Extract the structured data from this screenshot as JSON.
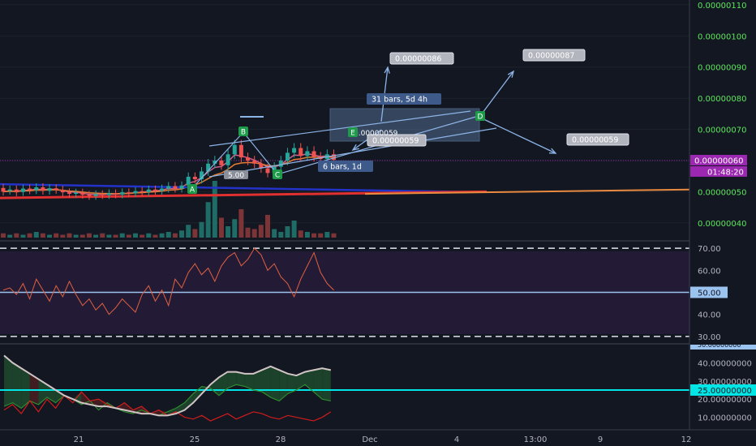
{
  "colors": {
    "background": "#131722",
    "axis_text": "#b2b5be",
    "up_candle": "#26a69a",
    "down_candle": "#ef5350",
    "label_green": "#1e9b4a",
    "label_blue": "#3d5a8a",
    "price_label": "#9c27b0",
    "rsi_line": "#e06040",
    "rsi_band": "#2a1d3d",
    "dmi_adx": "#d1c4c4",
    "dmi_plus": "#2e8b2e",
    "dmi_minus": "#d01c1c",
    "dmi_level": "#00e5e5"
  },
  "chart_data": [
    {
      "type": "candlestick",
      "x_ticks": [
        "21",
        "25",
        "28",
        "Dec",
        "4",
        "13:00",
        "9",
        "12"
      ],
      "y_ticks": [
        "0.00000110",
        "0.00000100",
        "0.00000090",
        "0.00000080",
        "0.00000070",
        "0.00000060",
        "0.00000050",
        "0.00000040"
      ],
      "ylim": [
        3.5e-07,
        1.105e-06
      ],
      "last_price": "0.00000060",
      "countdown": "01:48:20",
      "candles": [
        [
          5.12e-07,
          5e-07
        ],
        [
          5.03e-07,
          5.07e-07
        ],
        [
          5.07e-07,
          4.98e-07
        ],
        [
          4.99e-07,
          5.1e-07
        ],
        [
          5.1e-07,
          5.05e-07
        ],
        [
          5.05e-07,
          5.14e-07
        ],
        [
          5.14e-07,
          5.03e-07
        ],
        [
          5.03e-07,
          5.11e-07
        ],
        [
          5.11e-07,
          5.06e-07
        ],
        [
          5.06e-07,
          4.98e-07
        ],
        [
          4.98e-07,
          4.93e-07
        ],
        [
          4.93e-07,
          4.97e-07
        ],
        [
          4.97e-07,
          4.9e-07
        ],
        [
          4.9e-07,
          4.86e-07
        ],
        [
          4.86e-07,
          4.92e-07
        ],
        [
          4.92e-07,
          4.89e-07
        ],
        [
          4.89e-07,
          4.95e-07
        ],
        [
          4.95e-07,
          4.91e-07
        ],
        [
          4.91e-07,
          4.98e-07
        ],
        [
          4.98e-07,
          4.95e-07
        ],
        [
          4.95e-07,
          5.02e-07
        ],
        [
          5.02e-07,
          4.99e-07
        ],
        [
          4.99e-07,
          5.07e-07
        ],
        [
          5.07e-07,
          5.03e-07
        ],
        [
          5.03e-07,
          5.1e-07
        ],
        [
          5.1e-07,
          5.18e-07
        ],
        [
          5.18e-07,
          5.1e-07
        ],
        [
          5.1e-07,
          5.2e-07
        ],
        [
          5.2e-07,
          5.48e-07
        ],
        [
          5.48e-07,
          5.4e-07
        ],
        [
          5.4e-07,
          5.65e-07
        ],
        [
          5.65e-07,
          5.9e-07
        ],
        [
          5.9e-07,
          6e-07
        ],
        [
          6e-07,
          5.85e-07
        ],
        [
          5.85e-07,
          6.2e-07
        ],
        [
          6.2e-07,
          6.5e-07
        ],
        [
          6.5e-07,
          6.1e-07
        ],
        [
          6.1e-07,
          6e-07
        ],
        [
          6e-07,
          5.9e-07
        ],
        [
          5.9e-07,
          5.75e-07
        ],
        [
          5.75e-07,
          5.6e-07
        ],
        [
          5.6e-07,
          5.8e-07
        ],
        [
          5.8e-07,
          6e-07
        ],
        [
          6e-07,
          6.25e-07
        ],
        [
          6.25e-07,
          6.4e-07
        ],
        [
          6.4e-07,
          6.15e-07
        ],
        [
          6.15e-07,
          6.3e-07
        ],
        [
          6.3e-07,
          6.12e-07
        ],
        [
          6.12e-07,
          6.05e-07
        ],
        [
          6.05e-07,
          6.2e-07
        ],
        [
          6.2e-07,
          6.02e-07
        ]
      ],
      "volume": [
        3,
        2,
        3,
        2,
        3,
        4,
        3,
        2,
        3,
        2,
        3,
        2,
        2,
        3,
        2,
        3,
        2,
        2,
        3,
        2,
        3,
        2,
        3,
        2,
        3,
        4,
        3,
        5,
        9,
        6,
        11,
        25,
        40,
        14,
        8,
        13,
        20,
        7,
        6,
        9,
        16,
        6,
        4,
        8,
        12,
        5,
        4,
        3,
        3,
        4,
        3
      ],
      "annotations": [
        "A",
        "B",
        "C",
        "D",
        "E"
      ],
      "projections": [
        {
          "label": "0.00000086",
          "bars": "31 bars, 5d 4h"
        },
        {
          "label": "0.00000087"
        },
        {
          "label": "0.00000059",
          "bars": "6 bars, 1d"
        },
        {
          "label": "0.00000059"
        }
      ],
      "extra_labels": [
        "0.00000059",
        "5.00"
      ]
    },
    {
      "type": "line",
      "name": "RSI",
      "y_ticks": [
        "70.00",
        "60.00",
        "50.00",
        "40.00",
        "30.00"
      ],
      "ylim": [
        27,
        73
      ],
      "upper_band": 70,
      "lower_band": 30,
      "mid_label": "50.00",
      "values": [
        51,
        52,
        49,
        54,
        47,
        56,
        51,
        46,
        53,
        48,
        55,
        49,
        44,
        47,
        42,
        45,
        40,
        43,
        47,
        44,
        41,
        49,
        53,
        46,
        51,
        44,
        56,
        52,
        59,
        63,
        58,
        61,
        55,
        62,
        66,
        68,
        62,
        65,
        70,
        67,
        60,
        63,
        57,
        54,
        48,
        56,
        62,
        68,
        59,
        54,
        51
      ]
    },
    {
      "type": "line",
      "name": "DMI",
      "y_ticks": [
        "50.00000000",
        "40.00000000",
        "30.00000000",
        "25.00000000",
        "20.00000000",
        "10.00000000"
      ],
      "ylim": [
        4,
        50
      ],
      "level": 25,
      "level_label": "25.00000000",
      "adx": [
        44,
        40,
        37,
        34,
        31,
        28,
        25,
        22,
        20,
        18,
        17,
        16,
        16,
        15,
        14,
        13,
        12,
        12,
        11,
        11,
        12,
        14,
        18,
        23,
        28,
        32,
        35,
        35,
        34,
        34,
        36,
        38,
        36,
        34,
        33,
        35,
        36,
        37,
        36
      ],
      "plus_di": [
        16,
        18,
        15,
        19,
        17,
        21,
        18,
        22,
        20,
        17,
        19,
        14,
        18,
        15,
        13,
        12,
        14,
        12,
        11,
        13,
        15,
        18,
        23,
        27,
        26,
        22,
        26,
        28,
        27,
        25,
        24,
        21,
        19,
        23,
        25,
        28,
        24,
        20,
        19
      ],
      "minus_di": [
        14,
        17,
        12,
        19,
        13,
        20,
        15,
        22,
        18,
        24,
        19,
        20,
        17,
        15,
        18,
        14,
        16,
        12,
        14,
        11,
        13,
        10,
        9,
        11,
        8,
        10,
        12,
        9,
        11,
        13,
        12,
        10,
        9,
        11,
        10,
        9,
        8,
        10,
        13
      ]
    }
  ]
}
